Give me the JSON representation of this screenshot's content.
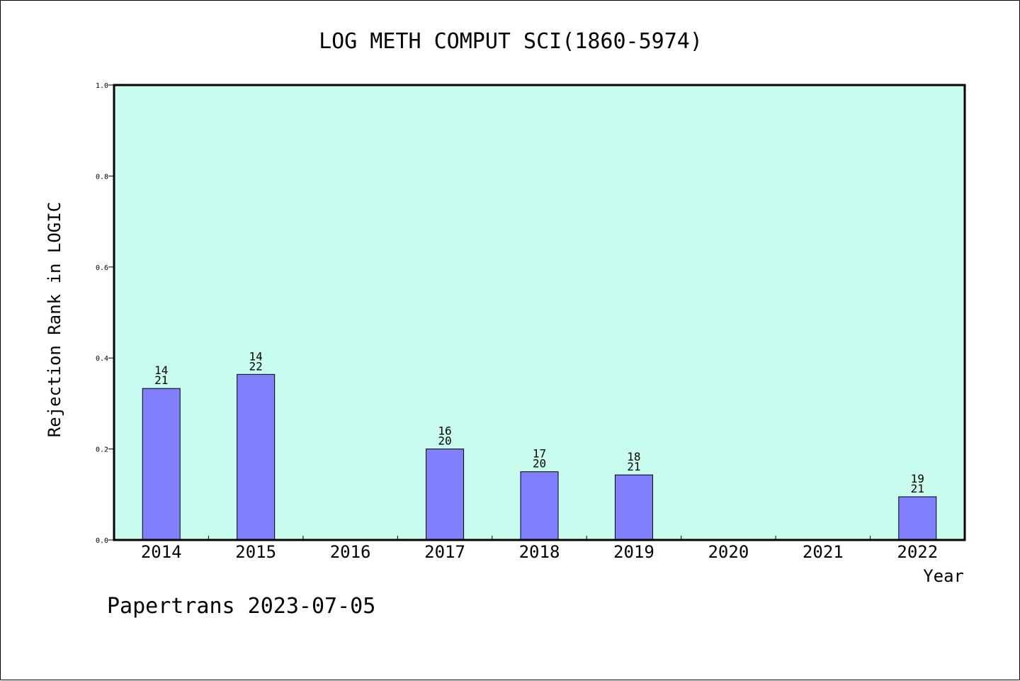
{
  "chart_data": {
    "type": "bar",
    "title": "LOG METH COMPUT SCI(1860-5974)",
    "xlabel": "Year",
    "ylabel": "Rejection Rank in LOGIC",
    "ylim": [
      0,
      1.0
    ],
    "yticks": [
      "0.0",
      "0.2",
      "0.4",
      "0.6",
      "0.8",
      "1.0"
    ],
    "grid": false,
    "categories": [
      "2014",
      "2015",
      "2016",
      "2017",
      "2018",
      "2019",
      "2020",
      "2021",
      "2022"
    ],
    "values": [
      0.333,
      0.364,
      null,
      0.2,
      0.15,
      0.143,
      null,
      null,
      0.095
    ],
    "label_top": [
      "14",
      "14",
      "",
      "16",
      "17",
      "18",
      "",
      "",
      "19"
    ],
    "label_bottom": [
      "21",
      "22",
      "",
      "20",
      "20",
      "21",
      "",
      "",
      "21"
    ],
    "plot_background": "#c8fcee",
    "bar_color": "#8080ff"
  },
  "footer": "Papertrans 2023-07-05"
}
